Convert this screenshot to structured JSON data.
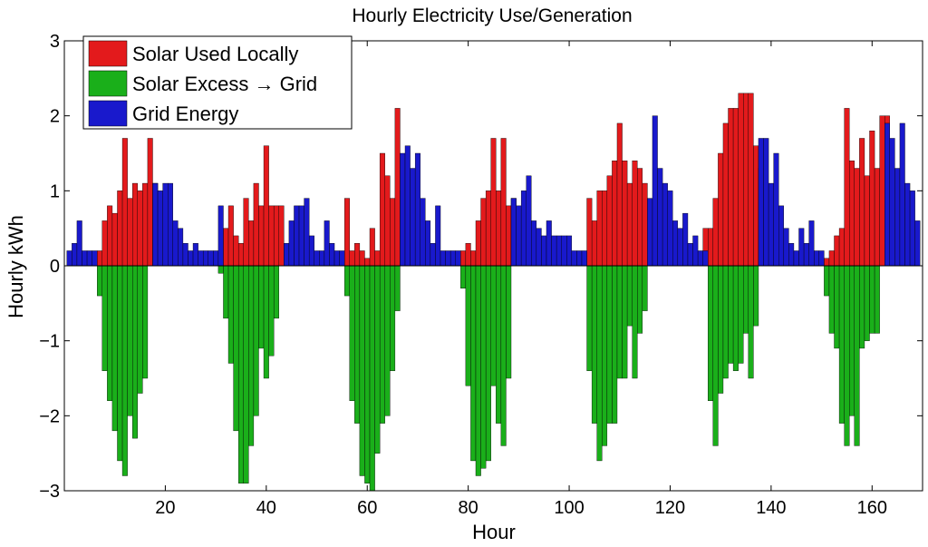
{
  "chart_data": {
    "type": "bar",
    "title": "Hourly Electricity Use/Generation",
    "xlabel": "Hour",
    "ylabel": "Hourly kWh",
    "xlim": [
      0,
      170
    ],
    "ylim": [
      -3,
      3
    ],
    "xticks": [
      20,
      40,
      60,
      80,
      100,
      120,
      140,
      160
    ],
    "yticks": [
      -3,
      -2,
      -1,
      0,
      1,
      2,
      3
    ],
    "grid": false,
    "legend_position": "top-left",
    "series": [
      {
        "name": "Solar Used Locally",
        "color": "#e31a1c",
        "x": [
          7,
          8,
          9,
          10,
          11,
          12,
          13,
          14,
          15,
          16,
          17,
          18,
          32,
          33,
          34,
          35,
          36,
          37,
          38,
          39,
          40,
          41,
          42,
          43,
          56,
          57,
          58,
          59,
          60,
          61,
          62,
          63,
          64,
          65,
          66,
          67,
          79,
          80,
          81,
          82,
          83,
          84,
          85,
          86,
          87,
          88,
          89,
          104,
          105,
          106,
          107,
          108,
          109,
          110,
          111,
          112,
          113,
          114,
          115,
          127,
          128,
          129,
          130,
          131,
          132,
          133,
          134,
          135,
          136,
          137,
          138,
          151,
          152,
          153,
          154,
          155,
          156,
          157,
          158,
          159,
          160,
          161,
          162,
          163
        ],
        "values": [
          0.2,
          0.6,
          0.8,
          0.7,
          1.0,
          1.7,
          0.9,
          1.1,
          1.0,
          1.1,
          1.7,
          1.1,
          0.5,
          0.8,
          0.4,
          0.3,
          0.9,
          0.6,
          1.1,
          0.8,
          1.6,
          0.8,
          0.8,
          0.8,
          0.9,
          0.2,
          0.3,
          0.2,
          0.1,
          0.5,
          0.2,
          1.5,
          1.2,
          0.9,
          2.1,
          1.0,
          0.2,
          0.3,
          0.2,
          0.6,
          0.9,
          1.0,
          1.7,
          1.0,
          1.7,
          0.8,
          0.9,
          0.9,
          0.6,
          1.0,
          1.0,
          1.2,
          1.4,
          1.9,
          1.4,
          1.1,
          1.4,
          1.3,
          1.1,
          0.5,
          0.5,
          0.9,
          1.5,
          1.9,
          2.1,
          2.1,
          2.3,
          2.3,
          2.3,
          1.6,
          1.3,
          0.1,
          0.2,
          0.4,
          0.5,
          2.1,
          1.4,
          1.3,
          1.7,
          1.2,
          1.8,
          1.3,
          2.0,
          2.0
        ]
      },
      {
        "name": "Solar Excess → Grid",
        "color": "#1aaf1a",
        "x": [
          7,
          8,
          9,
          10,
          11,
          12,
          13,
          14,
          15,
          16,
          31,
          32,
          33,
          34,
          35,
          36,
          37,
          38,
          39,
          40,
          41,
          42,
          56,
          57,
          58,
          59,
          60,
          61,
          62,
          63,
          64,
          65,
          66,
          79,
          80,
          81,
          82,
          83,
          84,
          85,
          86,
          87,
          88,
          104,
          105,
          106,
          107,
          108,
          109,
          110,
          111,
          112,
          113,
          114,
          115,
          128,
          129,
          130,
          131,
          132,
          133,
          134,
          135,
          136,
          137,
          151,
          152,
          153,
          154,
          155,
          156,
          157,
          158,
          159,
          160,
          161
        ],
        "values": [
          -0.4,
          -1.4,
          -1.8,
          -2.2,
          -2.6,
          -2.8,
          -2.0,
          -2.3,
          -1.7,
          -1.5,
          -0.1,
          -0.7,
          -1.3,
          -2.2,
          -2.9,
          -2.9,
          -2.4,
          -2.0,
          -1.1,
          -1.5,
          -1.2,
          -0.7,
          -0.4,
          -1.8,
          -2.1,
          -2.8,
          -2.9,
          -3.0,
          -2.5,
          -2.1,
          -2.0,
          -1.4,
          -0.6,
          -0.3,
          -1.6,
          -2.6,
          -2.8,
          -2.7,
          -2.6,
          -1.6,
          -2.1,
          -2.4,
          -1.5,
          -1.4,
          -2.1,
          -2.6,
          -2.4,
          -2.1,
          -2.1,
          -1.5,
          -1.5,
          -0.8,
          -1.5,
          -0.9,
          -0.6,
          -1.8,
          -2.4,
          -1.7,
          -1.5,
          -1.3,
          -1.4,
          -1.3,
          -0.9,
          -1.5,
          -0.8,
          -0.4,
          -0.9,
          -1.1,
          -2.1,
          -2.4,
          -2.0,
          -2.4,
          -1.1,
          -1.0,
          -0.9,
          -0.9
        ]
      },
      {
        "name": "Grid Energy",
        "color": "#1919cc",
        "x": [
          1,
          2,
          3,
          4,
          5,
          6,
          18,
          19,
          20,
          21,
          22,
          23,
          24,
          25,
          26,
          27,
          28,
          29,
          30,
          31,
          44,
          45,
          46,
          47,
          48,
          49,
          50,
          51,
          52,
          53,
          54,
          55,
          67,
          68,
          69,
          70,
          71,
          72,
          73,
          74,
          75,
          76,
          77,
          78,
          89,
          90,
          91,
          92,
          93,
          94,
          95,
          96,
          97,
          98,
          99,
          100,
          101,
          102,
          103,
          116,
          117,
          118,
          119,
          120,
          121,
          122,
          123,
          124,
          125,
          126,
          127,
          138,
          139,
          140,
          141,
          142,
          143,
          144,
          145,
          146,
          147,
          148,
          149,
          150,
          163,
          164,
          165,
          166,
          167,
          168,
          169
        ],
        "values": [
          0.2,
          0.3,
          0.6,
          0.2,
          0.2,
          0.2,
          1.1,
          1.0,
          1.1,
          1.1,
          0.6,
          0.5,
          0.3,
          0.2,
          0.3,
          0.2,
          0.2,
          0.2,
          0.2,
          0.8,
          0.3,
          0.6,
          0.8,
          0.8,
          0.9,
          0.4,
          0.2,
          0.2,
          0.6,
          0.3,
          0.2,
          0.2,
          1.5,
          1.6,
          1.3,
          1.5,
          0.9,
          0.6,
          0.3,
          0.8,
          0.2,
          0.2,
          0.2,
          0.2,
          0.9,
          0.8,
          1.0,
          1.2,
          0.6,
          0.5,
          0.4,
          0.6,
          0.4,
          0.4,
          0.4,
          0.4,
          0.2,
          0.2,
          0.2,
          0.9,
          2.0,
          1.3,
          1.1,
          1.0,
          0.6,
          0.5,
          0.7,
          0.3,
          0.4,
          0.2,
          0.2,
          1.7,
          1.7,
          1.1,
          1.5,
          0.8,
          0.5,
          0.3,
          0.2,
          0.5,
          0.3,
          0.6,
          0.2,
          0.2,
          1.9,
          1.7,
          1.3,
          1.9,
          1.1,
          1.0,
          0.6
        ]
      }
    ]
  }
}
